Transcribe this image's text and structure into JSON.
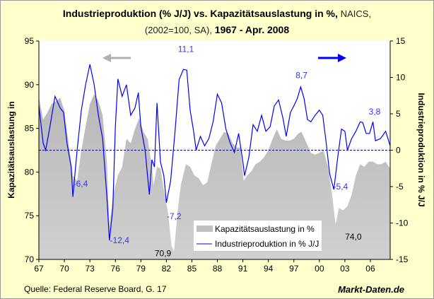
{
  "title": {
    "bold_1": "Industrieproduktion (% J/J) vs. Kapazitätsauslastung in %,",
    "normal_1": "NAICS,",
    "normal_2": "(2002=100, SA),",
    "bold_2": "1967 - Apr. 2008"
  },
  "footer": {
    "source": "Quelle: Federal Reserve Board, G. 17",
    "brand": "Markt-Daten.de"
  },
  "chart_data": {
    "type": "area+line",
    "title": "Industrieproduktion (% J/J) vs. Kapazitätsauslastung in %, NAICS, (2002=100, SA), 1967 - Apr. 2008",
    "ylabel_left": "Kapazitätsauslastung in",
    "ylabel_right": "Industrieproduktion in % J/J",
    "ylim_left": [
      70,
      95
    ],
    "ylim_right": [
      -15,
      15
    ],
    "yticks_left": [
      "70",
      "75",
      "80",
      "85",
      "90",
      "95"
    ],
    "yticks_right": [
      "-15",
      "-10",
      "-5",
      "0",
      "5",
      "10",
      "15"
    ],
    "xlim": [
      1967,
      2008.33
    ],
    "xticks": [
      "67",
      "70",
      "73",
      "76",
      "79",
      "82",
      "85",
      "88",
      "91",
      "94",
      "97",
      "00",
      "03",
      "06"
    ],
    "legend_position": "bottom-center",
    "reference_line_right": 0,
    "colors": {
      "capacity": "#c0c0c0",
      "ip": "#0000ff",
      "background": "#ffffcc",
      "zero_line": "#000080",
      "left_arrow": "#b0b0b0"
    },
    "series": [
      {
        "name": "Kapazitätsauslastung in %",
        "axis": "left",
        "kind": "area",
        "x": [
          1967,
          1967.5,
          1968,
          1968.5,
          1969,
          1969.5,
          1970,
          1970.5,
          1971,
          1971.5,
          1972,
          1972.5,
          1973,
          1973.5,
          1974,
          1974.5,
          1975,
          1975.3,
          1975.7,
          1976.3,
          1976.8,
          1977.3,
          1977.8,
          1978.3,
          1978.8,
          1979.3,
          1979.8,
          1980.3,
          1980.5,
          1980.9,
          1981.3,
          1981.7,
          1982.2,
          1982.6,
          1982.9,
          1983.3,
          1983.7,
          1984.3,
          1984.8,
          1985.3,
          1985.8,
          1986.3,
          1986.8,
          1987.3,
          1987.8,
          1988.3,
          1988.8,
          1989.3,
          1989.8,
          1990.3,
          1990.7,
          1991.1,
          1991.5,
          1992,
          1992.5,
          1993,
          1993.5,
          1994,
          1994.5,
          1995,
          1995.5,
          1996,
          1996.5,
          1997,
          1997.5,
          1997.9,
          1998.5,
          1999,
          1999.5,
          2000,
          2000.5,
          2001,
          2001.5,
          2001.9,
          2002.3,
          2002.8,
          2003.3,
          2003.8,
          2004.3,
          2004.8,
          2005.3,
          2005.8,
          2006.3,
          2006.8,
          2007.3,
          2007.8,
          2008.33
        ],
        "values": [
          88.6,
          86,
          86.8,
          87.8,
          88.1,
          88.5,
          87,
          83.3,
          79.6,
          79,
          82.5,
          85.2,
          87.8,
          88.9,
          88.1,
          86.5,
          81.2,
          74,
          77.2,
          79.6,
          80.6,
          83.8,
          83.3,
          84.9,
          86.2,
          84.6,
          83.8,
          80.6,
          78.5,
          80.6,
          80.4,
          78,
          75.3,
          71.6,
          70.9,
          75.3,
          78.5,
          80.9,
          80.6,
          79.6,
          79.3,
          78.5,
          78.8,
          80.9,
          83,
          83.8,
          84.6,
          84.4,
          83.3,
          82.8,
          82.8,
          79,
          79.6,
          80.1,
          80.9,
          81.2,
          81.7,
          82.5,
          83.8,
          84.9,
          83.8,
          83.6,
          83.6,
          83.8,
          84.4,
          84.6,
          83.3,
          82.2,
          82,
          82.2,
          82.5,
          80.6,
          77.4,
          74.0,
          75.9,
          75.6,
          76.1,
          77.4,
          79.6,
          80.9,
          80.6,
          81.2,
          81.2,
          80.9,
          80.9,
          81.2,
          80.4
        ]
      },
      {
        "name": "Industrieproduktion in % J/J",
        "axis": "right",
        "kind": "line",
        "x": [
          1967,
          1967.5,
          1967.8,
          1968.3,
          1968.9,
          1969.5,
          1969.9,
          1970.3,
          1970.8,
          1971,
          1971.5,
          1972,
          1972.5,
          1973,
          1973.5,
          1974,
          1974.5,
          1975,
          1975.3,
          1975.7,
          1976,
          1976.3,
          1976.8,
          1977.3,
          1977.8,
          1978.3,
          1978.7,
          1979,
          1979.5,
          1980,
          1980.3,
          1980.6,
          1980.9,
          1981.3,
          1981.7,
          1982,
          1982.5,
          1983,
          1983.5,
          1984,
          1984.4,
          1984.8,
          1985.2,
          1985.5,
          1986,
          1986.5,
          1987,
          1987.5,
          1988,
          1988.5,
          1989,
          1989.5,
          1990,
          1990.5,
          1991,
          1991.2,
          1991.7,
          1992.2,
          1992.7,
          1993.2,
          1993.7,
          1994.2,
          1994.7,
          1995.2,
          1995.7,
          1996.1,
          1996.6,
          1997,
          1997.4,
          1997.8,
          1998.2,
          1998.6,
          1999,
          1999.5,
          2000,
          2000.4,
          2000.8,
          2001.2,
          2001.7,
          2002.2,
          2002.6,
          2003,
          2003.3,
          2003.8,
          2004.3,
          2004.8,
          2005.1,
          2005.5,
          2005.9,
          2006.3,
          2006.6,
          2007.2,
          2007.8,
          2008.33
        ],
        "values": [
          6.1,
          1,
          0,
          3.2,
          7.4,
          5.8,
          5.2,
          1,
          -2.3,
          -6.4,
          0,
          5.5,
          9,
          11.8,
          9,
          4.8,
          1.6,
          -6.4,
          -12.4,
          -8,
          3.2,
          9.8,
          7.4,
          9,
          4.8,
          5.8,
          7.9,
          3.2,
          0,
          -6.1,
          -1.3,
          -2.3,
          6.5,
          -1.6,
          -3.5,
          -7.2,
          -4.2,
          2.3,
          9.7,
          11.1,
          11,
          5.5,
          2.6,
          0,
          1.9,
          0.6,
          1.6,
          3.9,
          7.7,
          6.5,
          2.9,
          1,
          -0.3,
          2.3,
          -1.6,
          -3.5,
          -1,
          3.5,
          2.6,
          4.8,
          2.6,
          3.2,
          6.1,
          6.9,
          4.5,
          1.9,
          5.2,
          6.1,
          7.1,
          8.7,
          7.1,
          4.2,
          3.9,
          4.8,
          5.5,
          4.8,
          1,
          -3.2,
          -5.4,
          -0.6,
          2.9,
          2.6,
          0,
          1.6,
          2.6,
          3.9,
          3.8,
          2.3,
          2.3,
          3.9,
          1.3,
          1.6,
          2.6,
          0.6
        ]
      }
    ],
    "annotations": [
      {
        "text": "-6,4",
        "series": "ip",
        "x": 1971.9,
        "y": -4.6
      },
      {
        "text": "-12,4",
        "series": "ip",
        "x": 1976.5,
        "y": -12.4
      },
      {
        "text": "11,1",
        "series": "ip",
        "x": 1984.3,
        "y": 13.9
      },
      {
        "text": "-7,2",
        "series": "ip",
        "x": 1982.9,
        "y": -9.1
      },
      {
        "text": "8,7",
        "series": "ip",
        "x": 1997.9,
        "y": 10.3
      },
      {
        "text": "-5,4",
        "series": "ip",
        "x": 2002.5,
        "y": -5.0
      },
      {
        "text": "3,8",
        "series": "ip",
        "x": 2006.5,
        "y": 5.3
      },
      {
        "text": "70,9",
        "series": "capacity",
        "x": 1981.6,
        "y": 70.7
      },
      {
        "text": "74,0",
        "series": "capacity",
        "x": 2004.0,
        "y": 72.6
      }
    ]
  }
}
